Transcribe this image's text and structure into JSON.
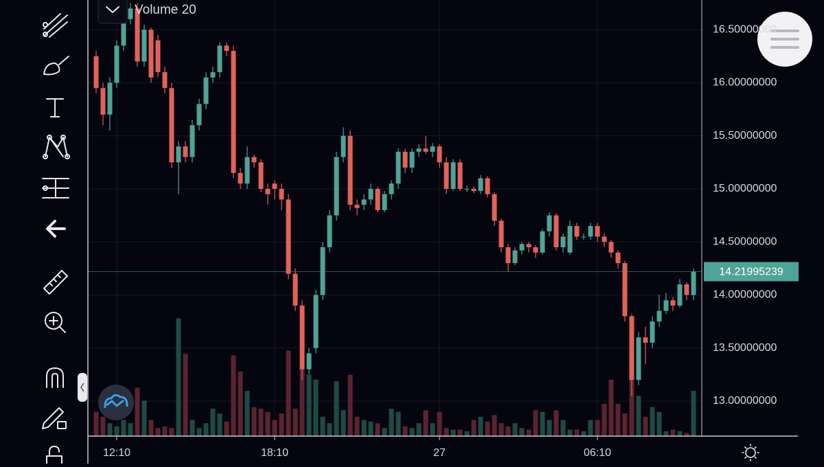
{
  "chart_data": {
    "type": "candlestick",
    "indicator": "Volume 20",
    "categories": [
      null,
      null,
      null,
      "12:10",
      null,
      null,
      null,
      null,
      null,
      null,
      null,
      null,
      null,
      null,
      null,
      null,
      null,
      null,
      null,
      null,
      null,
      null,
      null,
      null,
      null,
      null,
      "18:10",
      null,
      null,
      null,
      null,
      null,
      null,
      null,
      null,
      null,
      null,
      null,
      null,
      null,
      null,
      null,
      null,
      null,
      null,
      null,
      null,
      null,
      null,
      null,
      "27",
      null,
      null,
      null,
      null,
      null,
      null,
      null,
      null,
      null,
      null,
      null,
      null,
      null,
      null,
      null,
      null,
      null,
      null,
      null,
      null,
      null,
      null,
      "06:10",
      null,
      null,
      null,
      null,
      null,
      null,
      null,
      null,
      null,
      null,
      null,
      null,
      null,
      null
    ],
    "open": [
      16.25,
      15.95,
      15.7,
      16.0,
      16.35,
      16.6,
      16.7,
      16.2,
      16.5,
      16.4,
      16.1,
      15.95,
      15.25,
      15.4,
      15.3,
      15.6,
      15.8,
      16.05,
      16.1,
      16.35,
      16.3,
      15.15,
      15.05,
      15.3,
      15.25,
      15.0,
      15.05,
      15.0,
      14.9,
      14.2,
      13.9,
      13.3,
      13.5,
      14.0,
      14.45,
      14.75,
      15.3,
      15.5,
      14.85,
      14.85,
      14.9,
      15.0,
      14.8,
      14.95,
      15.05,
      15.35,
      15.2,
      15.35,
      15.38,
      15.35,
      15.4,
      15.25,
      15.0,
      15.25,
      15.0,
      15.0,
      14.98,
      15.1,
      14.95,
      14.7,
      14.45,
      14.3,
      14.42,
      14.48,
      14.45,
      14.4,
      14.6,
      14.75,
      14.45,
      14.4,
      14.65,
      14.55,
      14.55,
      14.65,
      14.55,
      14.5,
      14.4,
      14.3,
      13.8,
      13.2,
      13.6,
      13.55,
      13.75,
      13.85,
      13.95,
      13.9,
      14.1,
      14.0
    ],
    "high": [
      16.3,
      16.0,
      16.05,
      16.4,
      16.65,
      16.75,
      16.75,
      16.55,
      16.52,
      16.45,
      16.15,
      16.0,
      15.45,
      15.45,
      15.65,
      15.85,
      16.1,
      16.15,
      16.38,
      16.38,
      16.35,
      15.2,
      15.4,
      15.32,
      15.28,
      15.05,
      15.08,
      15.05,
      14.95,
      14.25,
      13.95,
      13.5,
      14.05,
      14.5,
      14.8,
      15.35,
      15.58,
      15.55,
      14.9,
      14.95,
      15.05,
      15.02,
      14.98,
      15.08,
      15.38,
      15.38,
      15.38,
      15.42,
      15.5,
      15.43,
      15.42,
      15.3,
      15.28,
      15.28,
      15.03,
      15.02,
      15.13,
      15.12,
      14.97,
      14.72,
      14.48,
      14.45,
      14.5,
      14.5,
      14.47,
      14.62,
      14.78,
      14.77,
      14.58,
      14.7,
      14.68,
      14.58,
      14.68,
      14.68,
      14.58,
      14.52,
      14.42,
      14.32,
      13.82,
      13.65,
      13.7,
      13.8,
      14.0,
      14.02,
      13.98,
      14.15,
      14.12,
      14.25
    ],
    "low": [
      15.9,
      15.6,
      15.55,
      15.95,
      16.3,
      16.55,
      16.15,
      16.15,
      16.0,
      16.05,
      15.9,
      15.2,
      14.95,
      15.25,
      15.25,
      15.55,
      15.75,
      16.0,
      16.05,
      16.25,
      15.1,
      15.0,
      15.0,
      15.2,
      14.97,
      14.85,
      14.9,
      14.8,
      14.15,
      13.85,
      13.2,
      13.25,
      13.45,
      13.95,
      14.4,
      14.7,
      15.25,
      14.8,
      14.75,
      14.8,
      14.85,
      14.78,
      14.78,
      14.9,
      15.0,
      15.15,
      15.15,
      15.3,
      15.33,
      15.3,
      15.2,
      14.95,
      14.98,
      14.98,
      14.97,
      14.96,
      14.95,
      14.92,
      14.65,
      14.4,
      14.22,
      14.28,
      14.38,
      14.4,
      14.35,
      14.38,
      14.55,
      14.42,
      14.4,
      14.38,
      14.52,
      14.52,
      14.52,
      14.5,
      14.45,
      14.35,
      14.25,
      13.75,
      13.05,
      13.15,
      13.35,
      13.5,
      13.7,
      13.82,
      13.85,
      13.88,
      13.95,
      13.95
    ],
    "close": [
      15.95,
      15.7,
      16.0,
      16.35,
      16.6,
      16.7,
      16.2,
      16.5,
      16.05,
      16.1,
      15.95,
      15.25,
      15.4,
      15.3,
      15.6,
      15.8,
      16.05,
      16.1,
      16.35,
      16.3,
      15.15,
      15.05,
      15.3,
      15.25,
      15.0,
      14.95,
      15.0,
      14.9,
      14.2,
      13.9,
      13.3,
      13.45,
      14.0,
      14.45,
      14.75,
      15.3,
      15.5,
      14.85,
      14.82,
      14.9,
      15.0,
      14.8,
      14.95,
      15.05,
      15.35,
      15.2,
      15.35,
      15.38,
      15.35,
      15.4,
      15.25,
      15.0,
      15.25,
      15.0,
      15.0,
      14.98,
      15.1,
      14.95,
      14.7,
      14.45,
      14.3,
      14.42,
      14.48,
      14.45,
      14.4,
      14.6,
      14.75,
      14.45,
      14.55,
      14.65,
      14.55,
      14.55,
      14.65,
      14.55,
      14.5,
      14.4,
      14.3,
      13.8,
      13.2,
      13.6,
      13.55,
      13.75,
      13.85,
      13.95,
      13.9,
      14.1,
      14.0,
      14.22
    ],
    "volume": [
      15,
      12,
      8,
      6,
      10,
      8,
      30,
      22,
      10,
      5,
      6,
      5,
      73,
      51,
      10,
      5,
      8,
      17,
      14,
      9,
      50,
      40,
      28,
      18,
      17,
      15,
      10,
      14,
      53,
      17,
      42,
      38,
      35,
      12,
      8,
      34,
      16,
      38,
      12,
      10,
      9,
      8,
      5,
      17,
      15,
      6,
      5,
      8,
      16,
      8,
      15,
      5,
      4,
      4,
      3,
      10,
      12,
      9,
      13,
      8,
      6,
      8,
      5,
      4,
      16,
      15,
      10,
      16,
      10,
      4,
      4,
      3,
      10,
      10,
      20,
      35,
      20,
      14,
      40,
      25,
      12,
      18,
      15,
      3,
      4,
      3,
      2,
      28
    ],
    "up_color": "#4fa397",
    "down_color": "#e2625a",
    "volume_up_color": "#1f4a44",
    "volume_down_color": "#5a2430",
    "ylim": [
      12.67,
      16.78
    ],
    "volume_lim": [
      0,
      100
    ],
    "yticks": [
      {
        "value": 13.0,
        "label": "13.00000000"
      },
      {
        "value": 13.5,
        "label": "13.50000000"
      },
      {
        "value": 14.0,
        "label": "14.00000000"
      },
      {
        "value": 14.5,
        "label": "14.50000000"
      },
      {
        "value": 15.0,
        "label": "15.00000000"
      },
      {
        "value": 15.5,
        "label": "15.50000000"
      },
      {
        "value": 16.0,
        "label": "16.00000000"
      },
      {
        "value": 16.5,
        "label": "16.50000000"
      }
    ],
    "last_price": 14.21995239,
    "grid": true
  }
}
